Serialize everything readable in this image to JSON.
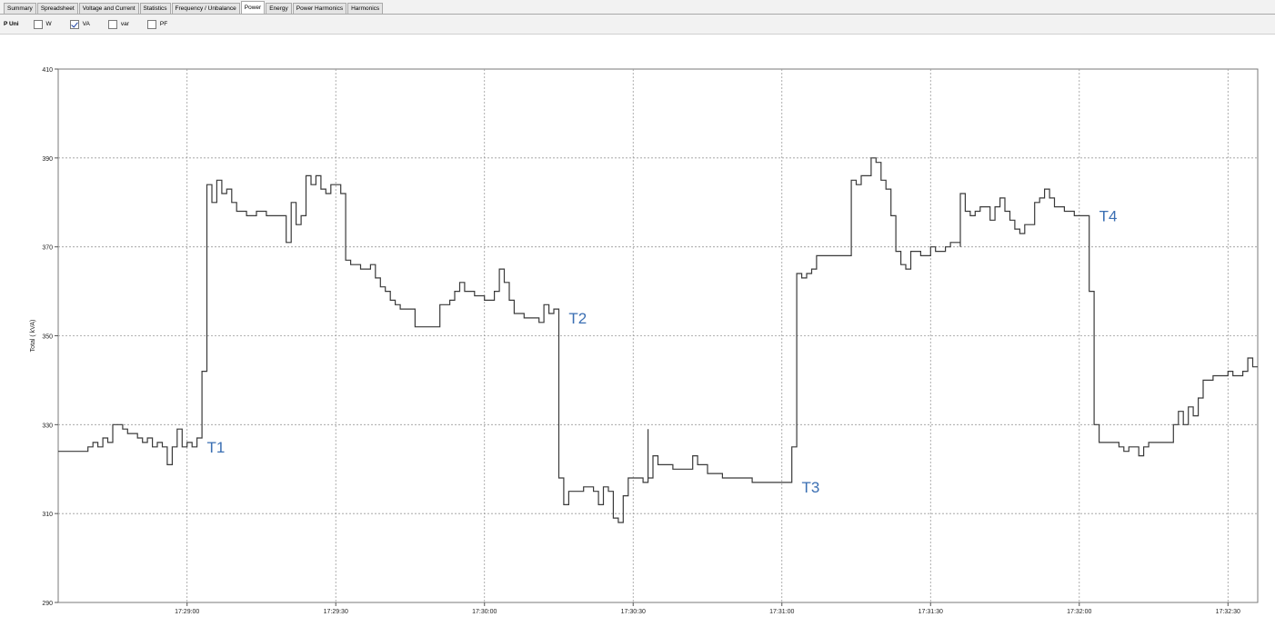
{
  "tabs": [
    {
      "label": "Summary",
      "active": false
    },
    {
      "label": "Spreadsheet",
      "active": false
    },
    {
      "label": "Voltage and Current",
      "active": false
    },
    {
      "label": "Statistics",
      "active": false
    },
    {
      "label": "Frequency / Unbalance",
      "active": false
    },
    {
      "label": "Power",
      "active": true
    },
    {
      "label": "Energy",
      "active": false
    },
    {
      "label": "Power Harmonics",
      "active": false
    },
    {
      "label": "Harmonics",
      "active": false
    }
  ],
  "options": {
    "title": "P Uni",
    "items": [
      {
        "label": "W",
        "checked": false
      },
      {
        "label": "VA",
        "checked": true
      },
      {
        "label": "var",
        "checked": false
      },
      {
        "label": "PF",
        "checked": false
      }
    ]
  },
  "chart_data": {
    "type": "line",
    "title": "",
    "xlabel": "",
    "ylabel": "Total ( kVA)",
    "ylim": [
      290,
      410
    ],
    "yticks": [
      290,
      310,
      330,
      350,
      370,
      390,
      410
    ],
    "xlim": [
      "17:28:34",
      "17:32:36"
    ],
    "xticks": [
      "17:29:00",
      "17:29:30",
      "17:30:00",
      "17:30:30",
      "17:31:00",
      "17:31:30",
      "17:32:00",
      "17:32:30"
    ],
    "grid": true,
    "line_color": "#3a3a3a",
    "annotation_color": "#3b6fb3",
    "series": [
      {
        "name": "",
        "points": [
          [
            "17:28:34",
            324
          ],
          [
            "17:28:38",
            324
          ],
          [
            "17:28:40",
            325
          ],
          [
            "17:28:41",
            326
          ],
          [
            "17:28:42",
            325
          ],
          [
            "17:28:43",
            327
          ],
          [
            "17:28:44",
            326
          ],
          [
            "17:28:45",
            330
          ],
          [
            "17:28:47",
            329
          ],
          [
            "17:28:48",
            328
          ],
          [
            "17:28:50",
            327
          ],
          [
            "17:28:51",
            326
          ],
          [
            "17:28:52",
            327
          ],
          [
            "17:28:53",
            325
          ],
          [
            "17:28:54",
            326
          ],
          [
            "17:28:55",
            325
          ],
          [
            "17:28:56",
            321
          ],
          [
            "17:28:57",
            325
          ],
          [
            "17:28:58",
            329
          ],
          [
            "17:28:59",
            325
          ],
          [
            "17:29:00",
            326
          ],
          [
            "17:29:01",
            325
          ],
          [
            "17:29:02",
            327
          ],
          [
            "17:29:03",
            342
          ],
          [
            "17:29:04",
            384
          ],
          [
            "17:29:05",
            380
          ],
          [
            "17:29:06",
            385
          ],
          [
            "17:29:07",
            382
          ],
          [
            "17:29:08",
            383
          ],
          [
            "17:29:09",
            380
          ],
          [
            "17:29:10",
            378
          ],
          [
            "17:29:12",
            377
          ],
          [
            "17:29:14",
            378
          ],
          [
            "17:29:16",
            377
          ],
          [
            "17:29:19",
            377
          ],
          [
            "17:29:20",
            371
          ],
          [
            "17:29:21",
            380
          ],
          [
            "17:29:22",
            375
          ],
          [
            "17:29:23",
            377
          ],
          [
            "17:29:24",
            386
          ],
          [
            "17:29:25",
            384
          ],
          [
            "17:29:26",
            386
          ],
          [
            "17:29:27",
            383
          ],
          [
            "17:29:28",
            382
          ],
          [
            "17:29:29",
            384
          ],
          [
            "17:29:30",
            384
          ],
          [
            "17:29:31",
            382
          ],
          [
            "17:29:32",
            367
          ],
          [
            "17:29:33",
            366
          ],
          [
            "17:29:35",
            365
          ],
          [
            "17:29:37",
            366
          ],
          [
            "17:29:38",
            363
          ],
          [
            "17:29:39",
            361
          ],
          [
            "17:29:40",
            360
          ],
          [
            "17:29:41",
            358
          ],
          [
            "17:29:42",
            357
          ],
          [
            "17:29:43",
            356
          ],
          [
            "17:29:45",
            356
          ],
          [
            "17:29:46",
            352
          ],
          [
            "17:29:48",
            352
          ],
          [
            "17:29:50",
            352
          ],
          [
            "17:29:51",
            357
          ],
          [
            "17:29:53",
            358
          ],
          [
            "17:29:54",
            360
          ],
          [
            "17:29:55",
            362
          ],
          [
            "17:29:56",
            360
          ],
          [
            "17:29:58",
            359
          ],
          [
            "17:30:00",
            358
          ],
          [
            "17:30:02",
            360
          ],
          [
            "17:30:03",
            365
          ],
          [
            "17:30:04",
            362
          ],
          [
            "17:30:05",
            358
          ],
          [
            "17:30:06",
            355
          ],
          [
            "17:30:08",
            354
          ],
          [
            "17:30:10",
            354
          ],
          [
            "17:30:11",
            353
          ],
          [
            "17:30:12",
            357
          ],
          [
            "17:30:13",
            355
          ],
          [
            "17:30:14",
            356
          ],
          [
            "17:30:15",
            318
          ],
          [
            "17:30:16",
            312
          ],
          [
            "17:30:17",
            315
          ],
          [
            "17:30:19",
            315
          ],
          [
            "17:30:20",
            316
          ],
          [
            "17:30:22",
            315
          ],
          [
            "17:30:23",
            312
          ],
          [
            "17:30:24",
            316
          ],
          [
            "17:30:25",
            315
          ],
          [
            "17:30:26",
            309
          ],
          [
            "17:30:27",
            308
          ],
          [
            "17:30:28",
            314
          ],
          [
            "17:30:29",
            318
          ],
          [
            "17:30:30",
            318
          ],
          [
            "17:30:31",
            318
          ],
          [
            "17:30:32",
            317
          ],
          [
            "17:30:33",
            329
          ],
          [
            "17:30:33",
            318
          ],
          [
            "17:30:34",
            323
          ],
          [
            "17:30:35",
            321
          ],
          [
            "17:30:38",
            320
          ],
          [
            "17:30:41",
            320
          ],
          [
            "17:30:42",
            323
          ],
          [
            "17:30:43",
            321
          ],
          [
            "17:30:45",
            319
          ],
          [
            "17:30:48",
            318
          ],
          [
            "17:30:51",
            318
          ],
          [
            "17:30:54",
            317
          ],
          [
            "17:30:57",
            317
          ],
          [
            "17:31:01",
            317
          ],
          [
            "17:31:02",
            325
          ],
          [
            "17:31:03",
            364
          ],
          [
            "17:31:04",
            363
          ],
          [
            "17:31:05",
            364
          ],
          [
            "17:31:06",
            365
          ],
          [
            "17:31:07",
            368
          ],
          [
            "17:31:09",
            368
          ],
          [
            "17:31:10",
            368
          ],
          [
            "17:31:13",
            368
          ],
          [
            "17:31:14",
            385
          ],
          [
            "17:31:15",
            384
          ],
          [
            "17:31:16",
            386
          ],
          [
            "17:31:18",
            390
          ],
          [
            "17:31:19",
            389
          ],
          [
            "17:31:20",
            385
          ],
          [
            "17:31:21",
            383
          ],
          [
            "17:31:22",
            377
          ],
          [
            "17:31:23",
            369
          ],
          [
            "17:31:24",
            366
          ],
          [
            "17:31:25",
            365
          ],
          [
            "17:31:26",
            369
          ],
          [
            "17:31:28",
            368
          ],
          [
            "17:31:30",
            370
          ],
          [
            "17:31:31",
            369
          ],
          [
            "17:31:33",
            370
          ],
          [
            "17:31:34",
            371
          ],
          [
            "17:31:36",
            370
          ],
          [
            "17:31:36",
            382
          ],
          [
            "17:31:37",
            378
          ],
          [
            "17:31:38",
            377
          ],
          [
            "17:31:39",
            378
          ],
          [
            "17:31:40",
            379
          ],
          [
            "17:31:42",
            376
          ],
          [
            "17:31:43",
            379
          ],
          [
            "17:31:44",
            381
          ],
          [
            "17:31:45",
            378
          ],
          [
            "17:31:46",
            376
          ],
          [
            "17:31:47",
            374
          ],
          [
            "17:31:48",
            373
          ],
          [
            "17:31:49",
            375
          ],
          [
            "17:31:51",
            380
          ],
          [
            "17:31:52",
            381
          ],
          [
            "17:31:53",
            383
          ],
          [
            "17:31:54",
            381
          ],
          [
            "17:31:55",
            379
          ],
          [
            "17:31:57",
            378
          ],
          [
            "17:31:59",
            377
          ],
          [
            "17:32:01",
            377
          ],
          [
            "17:32:02",
            360
          ],
          [
            "17:32:03",
            330
          ],
          [
            "17:32:04",
            326
          ],
          [
            "17:32:06",
            326
          ],
          [
            "17:32:08",
            325
          ],
          [
            "17:32:09",
            324
          ],
          [
            "17:32:10",
            325
          ],
          [
            "17:32:12",
            323
          ],
          [
            "17:32:13",
            325
          ],
          [
            "17:32:14",
            326
          ],
          [
            "17:32:16",
            326
          ],
          [
            "17:32:18",
            326
          ],
          [
            "17:32:19",
            330
          ],
          [
            "17:32:20",
            333
          ],
          [
            "17:32:21",
            330
          ],
          [
            "17:32:22",
            334
          ],
          [
            "17:32:23",
            332
          ],
          [
            "17:32:24",
            336
          ],
          [
            "17:32:25",
            340
          ],
          [
            "17:32:27",
            341
          ],
          [
            "17:32:30",
            342
          ],
          [
            "17:32:31",
            341
          ],
          [
            "17:32:33",
            342
          ],
          [
            "17:32:34",
            345
          ],
          [
            "17:32:35",
            343
          ],
          [
            "17:32:36",
            343
          ]
        ]
      }
    ],
    "annotations": [
      {
        "text": "T1",
        "x": "17:29:04",
        "y": 327
      },
      {
        "text": "T2",
        "x": "17:30:17",
        "y": 356
      },
      {
        "text": "T3",
        "x": "17:31:04",
        "y": 318
      },
      {
        "text": "T4",
        "x": "17:32:04",
        "y": 379
      }
    ]
  }
}
